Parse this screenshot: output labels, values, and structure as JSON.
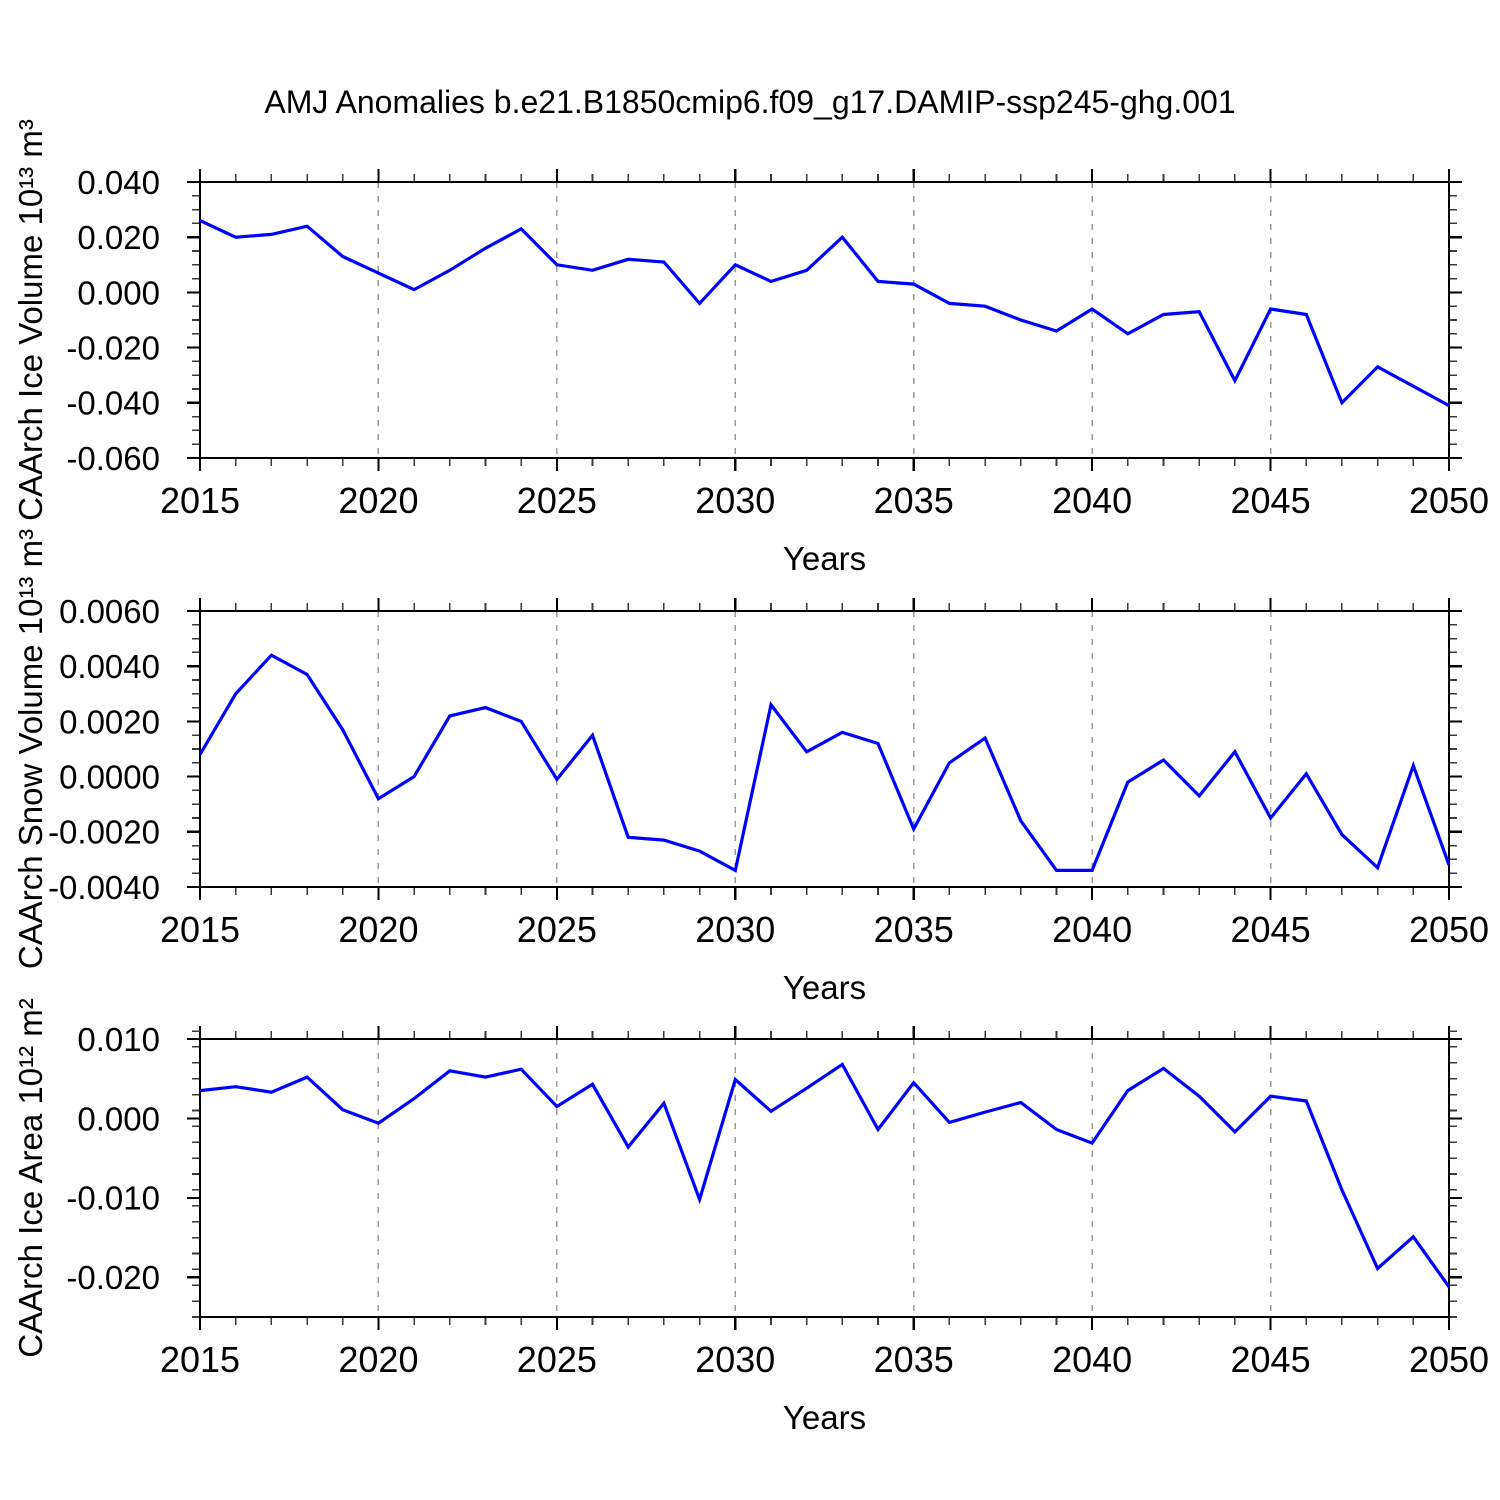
{
  "title": "AMJ Anomalies b.e21.B1850cmip6.f09_g17.DAMIP-ssp245-ghg.001",
  "style": {
    "line_color": "#0000ff",
    "grid_color": "#999999",
    "axis_color": "#000000",
    "minor_tick_color": "#3a3a3a"
  },
  "chart_data": [
    {
      "id": "ice-volume",
      "type": "line",
      "ylabel": "CAArch Ice Volume 10¹³ m³",
      "xlabel": "Years",
      "xlim": [
        2015,
        2050
      ],
      "ylim": [
        -0.06,
        0.04
      ],
      "grid": "vertical-dashed",
      "legend": null,
      "x": [
        2015,
        2016,
        2017,
        2018,
        2019,
        2020,
        2021,
        2022,
        2023,
        2024,
        2025,
        2026,
        2027,
        2028,
        2029,
        2030,
        2031,
        2032,
        2033,
        2034,
        2035,
        2036,
        2037,
        2038,
        2039,
        2040,
        2041,
        2042,
        2043,
        2044,
        2045,
        2046,
        2047,
        2048,
        2049,
        2050
      ],
      "values": [
        0.026,
        0.02,
        0.021,
        0.024,
        0.013,
        0.007,
        0.001,
        0.008,
        0.016,
        0.023,
        0.01,
        0.008,
        0.012,
        0.011,
        -0.004,
        0.01,
        0.004,
        0.008,
        0.02,
        0.004,
        0.003,
        -0.004,
        -0.005,
        -0.01,
        -0.014,
        -0.006,
        -0.015,
        -0.008,
        -0.007,
        -0.032,
        -0.006,
        -0.008,
        -0.04,
        -0.027,
        -0.034,
        -0.041
      ],
      "x_tick_values": [
        2015,
        2020,
        2025,
        2030,
        2035,
        2040,
        2045,
        2050
      ],
      "x_tick_labels": [
        "2015",
        "2020",
        "2025",
        "2030",
        "2035",
        "2040",
        "2045",
        "2050"
      ],
      "x_minor_step": 1,
      "grid_x_values": [
        2020,
        2025,
        2030,
        2035,
        2040,
        2045
      ],
      "y_tick_values": [
        0.04,
        0.02,
        0.0,
        -0.02,
        -0.04,
        -0.06
      ],
      "y_tick_labels": [
        "0.040",
        "0.020",
        "0.000",
        "-0.020",
        "-0.040",
        "-0.060"
      ],
      "y_minor_step": 0.005
    },
    {
      "id": "snow-volume",
      "type": "line",
      "ylabel": "CAArch Snow Volume 10¹³ m³",
      "xlabel": "Years",
      "xlim": [
        2015,
        2050
      ],
      "ylim": [
        -0.004,
        0.006
      ],
      "grid": "vertical-dashed",
      "legend": null,
      "x": [
        2015,
        2016,
        2017,
        2018,
        2019,
        2020,
        2021,
        2022,
        2023,
        2024,
        2025,
        2026,
        2027,
        2028,
        2029,
        2030,
        2031,
        2032,
        2033,
        2034,
        2035,
        2036,
        2037,
        2038,
        2039,
        2040,
        2041,
        2042,
        2043,
        2044,
        2045,
        2046,
        2047,
        2048,
        2049,
        2050
      ],
      "values": [
        0.0008,
        0.003,
        0.0044,
        0.0037,
        0.0017,
        -0.0008,
        0.0,
        0.0022,
        0.0025,
        0.002,
        -0.0001,
        0.0015,
        -0.0022,
        -0.0023,
        -0.0027,
        -0.0034,
        0.0026,
        0.0009,
        0.0016,
        0.0012,
        -0.0019,
        0.0005,
        0.0014,
        -0.0016,
        -0.0034,
        -0.0034,
        -0.0002,
        0.0006,
        -0.0007,
        0.0009,
        -0.0015,
        0.0001,
        -0.0021,
        -0.0033,
        0.0004,
        -0.0032
      ],
      "x_tick_values": [
        2015,
        2020,
        2025,
        2030,
        2035,
        2040,
        2045,
        2050
      ],
      "x_tick_labels": [
        "2015",
        "2020",
        "2025",
        "2030",
        "2035",
        "2040",
        "2045",
        "2050"
      ],
      "x_minor_step": 1,
      "grid_x_values": [
        2020,
        2025,
        2030,
        2035,
        2040,
        2045
      ],
      "y_tick_values": [
        0.006,
        0.004,
        0.002,
        0.0,
        -0.002,
        -0.004
      ],
      "y_tick_labels": [
        "0.0060",
        "0.0040",
        "0.0020",
        "0.0000",
        "-0.0020",
        "-0.0040"
      ],
      "y_minor_step": 0.0005
    },
    {
      "id": "ice-area",
      "type": "line",
      "ylabel": "CAArch Ice Area 10¹² m²",
      "xlabel": "Years",
      "xlim": [
        2015,
        2050
      ],
      "ylim": [
        -0.025,
        0.01
      ],
      "grid": "vertical-dashed",
      "legend": null,
      "x": [
        2015,
        2016,
        2017,
        2018,
        2019,
        2020,
        2021,
        2022,
        2023,
        2024,
        2025,
        2026,
        2027,
        2028,
        2029,
        2030,
        2031,
        2032,
        2033,
        2034,
        2035,
        2036,
        2037,
        2038,
        2039,
        2040,
        2041,
        2042,
        2043,
        2044,
        2045,
        2046,
        2047,
        2048,
        2049,
        2050
      ],
      "values": [
        0.0035,
        0.004,
        0.0033,
        0.0052,
        0.0011,
        -0.0006,
        0.0025,
        0.006,
        0.0052,
        0.0062,
        0.0015,
        0.0043,
        -0.0036,
        0.0019,
        -0.0102,
        0.0049,
        0.0009,
        0.0038,
        0.0068,
        -0.0014,
        0.0045,
        -0.0005,
        0.0008,
        0.002,
        -0.0014,
        -0.0031,
        0.0035,
        0.0063,
        0.0028,
        -0.0017,
        0.0028,
        0.0022,
        -0.009,
        -0.0189,
        -0.0149,
        -0.0212
      ],
      "x_tick_values": [
        2015,
        2020,
        2025,
        2030,
        2035,
        2040,
        2045,
        2050
      ],
      "x_tick_labels": [
        "2015",
        "2020",
        "2025",
        "2030",
        "2035",
        "2040",
        "2045",
        "2050"
      ],
      "x_minor_step": 1,
      "grid_x_values": [
        2020,
        2025,
        2030,
        2035,
        2040,
        2045
      ],
      "y_tick_values": [
        0.01,
        0.0,
        -0.01,
        -0.02
      ],
      "y_tick_labels": [
        "0.010",
        "0.000",
        "-0.010",
        "-0.020"
      ],
      "y_minor_step": 0.002
    }
  ]
}
